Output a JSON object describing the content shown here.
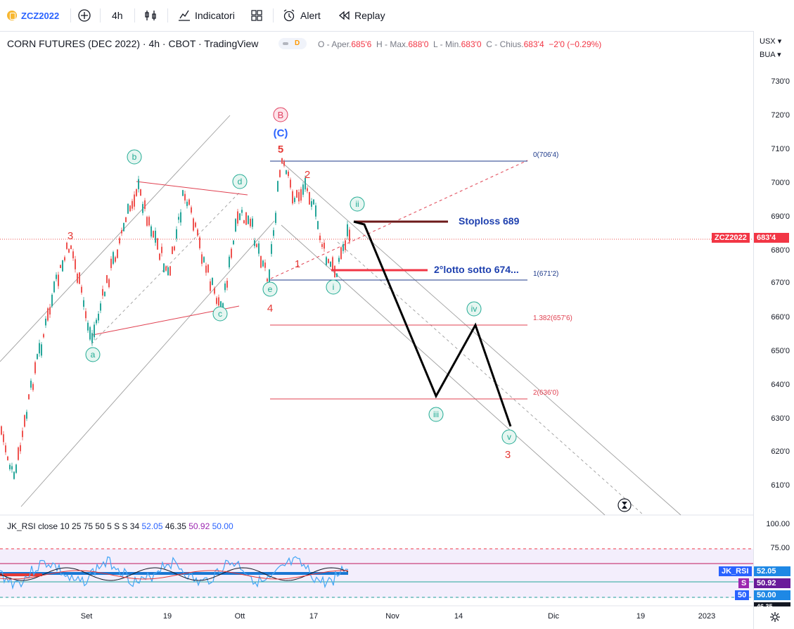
{
  "toolbar": {
    "symbol": "ZCZ2022",
    "interval": "4h",
    "indicators_label": "Indicatori",
    "alert_label": "Alert",
    "replay_label": "Replay"
  },
  "header": {
    "title": "CORN FUTURES (DEC 2022) · 4h · CBOT · TradingView",
    "badge_letter": "D",
    "ohlc": {
      "o_label": "O - Aper.",
      "o_value": "685'6",
      "h_label": "H - Max.",
      "h_value": "688'0",
      "l_label": "L - Min.",
      "l_value": "683'0",
      "c_label": "C - Chius.",
      "c_value": "683'4",
      "change": "−2'0 (−0.29%)"
    }
  },
  "axis": {
    "currency": "USX",
    "unit": "BUA",
    "prices": [
      "730'0",
      "720'0",
      "710'0",
      "700'0",
      "690'0",
      "680'0",
      "670'0",
      "660'0",
      "650'0",
      "640'0",
      "630'0",
      "620'0",
      "610'0"
    ],
    "rsi_levels": [
      "100.00",
      "75.00"
    ],
    "symbol_tag": "ZCZ2022",
    "last_price": "683'4",
    "rsi_tags": [
      {
        "name": "JK_RSI",
        "value": "52.05"
      },
      {
        "name": "S",
        "value": "50.92"
      },
      {
        "name": "50",
        "value": "50.00"
      }
    ],
    "partial_value": "46.35"
  },
  "time_axis": [
    "Set",
    "19",
    "Ott",
    "17",
    "Nov",
    "14",
    "Dic",
    "19",
    "2023"
  ],
  "fib": {
    "level_0": "0(706'4)",
    "level_1": "1(671'2)",
    "level_1382": "1.382(657'6)",
    "level_2": "2(636'0)"
  },
  "annotations": {
    "stoploss": "Stoploss 689",
    "second_lot": "2°lotto sotto 674..."
  },
  "wave_labels": {
    "B": "B",
    "C": "(C)",
    "five": "5",
    "two": "2",
    "one": "1",
    "four": "4",
    "three": "3",
    "three_left": "3",
    "a": "a",
    "b": "b",
    "c": "c",
    "d": "d",
    "e": "e",
    "i": "i",
    "ii": "ii",
    "iii": "iii",
    "iv": "iv",
    "v": "v"
  },
  "rsi": {
    "legend": "JK_RSI close 10 25 75 50 5 S S 34",
    "v1": "52.05",
    "v2": "46.35",
    "v3": "50.92",
    "v4": "50.00"
  },
  "colors": {
    "up": "#26a69a",
    "down": "#ef5350",
    "blue": "#2962ff",
    "red": "#f23645",
    "teal": "#22ab94",
    "fib_blue": "#1e3a8a",
    "fib_red": "#e04050"
  }
}
